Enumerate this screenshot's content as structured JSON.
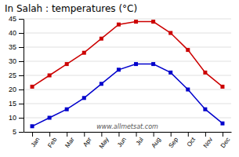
{
  "chart_data": {
    "type": "line",
    "title": "In Salah : temperatures (°C)",
    "categories": [
      "Jan",
      "Feb",
      "Mar",
      "Apr",
      "May",
      "Jun",
      "Jul",
      "Aug",
      "Sep",
      "Oct",
      "Nov",
      "Dec"
    ],
    "series": [
      {
        "color": "#cc0000",
        "marker": "square",
        "values": [
          21,
          25,
          29,
          33,
          38,
          43,
          44,
          44,
          40,
          34,
          26,
          21
        ]
      },
      {
        "color": "#0000cc",
        "marker": "square",
        "values": [
          7,
          10,
          13,
          17,
          22,
          27,
          29,
          29,
          26,
          20,
          13,
          8
        ]
      }
    ],
    "ylim": [
      5,
      45
    ],
    "yticks": [
      5,
      10,
      15,
      20,
      25,
      30,
      35,
      40,
      45
    ],
    "grid": true,
    "annotations": [
      "www.allmetsat.com"
    ]
  }
}
